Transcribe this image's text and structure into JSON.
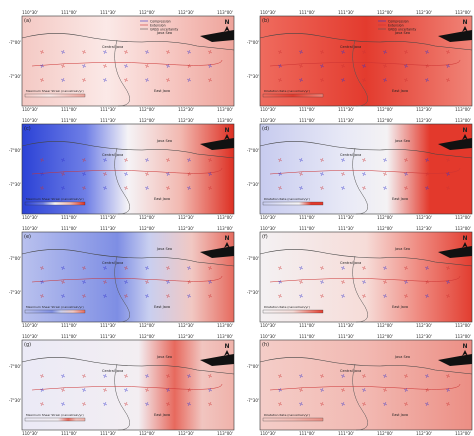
{
  "x_ticks": [
    "110°30'",
    "111°00'",
    "111°30'",
    "112°00'",
    "112°30'",
    "113°00'"
  ],
  "y_ticks": [
    "-7°00'",
    "-7°30'"
  ],
  "regions": {
    "central": "Central Java",
    "sea": "Java Sea",
    "east": "East Java"
  },
  "north": "N",
  "legend": [
    "Compression",
    "Extension",
    "GNSS uncertainty"
  ],
  "panels": [
    {
      "label": "(a)",
      "colorbar_title": "Maximum Shear Strain (nanostrain/yr)"
    },
    {
      "label": "(b)",
      "colorbar_title": "Dilatation Rate (nanostrain/yr)"
    },
    {
      "label": "(c)",
      "colorbar_title": "Maximum Shear Strain (nanostrain/yr)"
    },
    {
      "label": "(d)",
      "colorbar_title": "Dilatation Rate (nanostrain/yr)"
    },
    {
      "label": "(e)",
      "colorbar_title": "Maximum Shear Strain (nanostrain/yr)"
    },
    {
      "label": "(f)",
      "colorbar_title": "Dilatation Rate (nanostrain/yr)"
    },
    {
      "label": "(g)",
      "colorbar_title": "Maximum Shear Strain (nanostrain/yr)"
    },
    {
      "label": "(h)",
      "colorbar_title": "Dilatation Rate (nanostrain/yr)"
    }
  ]
}
